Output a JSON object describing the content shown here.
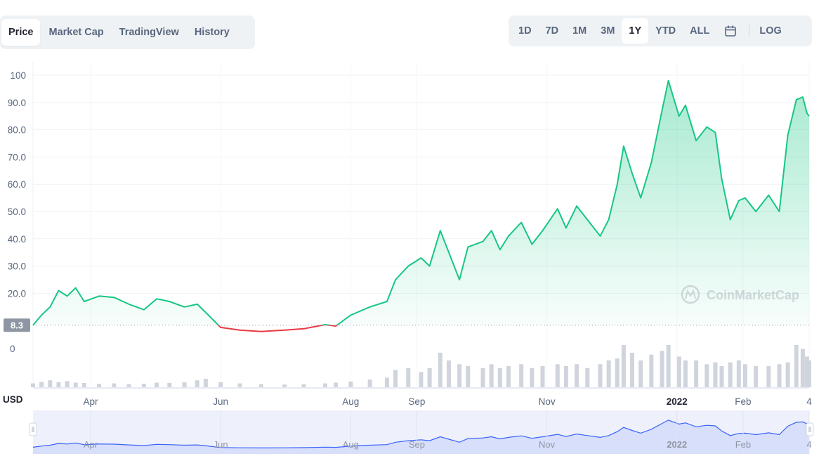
{
  "tabs": [
    {
      "label": "Price",
      "active": true
    },
    {
      "label": "Market Cap",
      "active": false
    },
    {
      "label": "TradingView",
      "active": false
    },
    {
      "label": "History",
      "active": false
    }
  ],
  "ranges": [
    {
      "label": "1D",
      "active": false
    },
    {
      "label": "7D",
      "active": false
    },
    {
      "label": "1M",
      "active": false
    },
    {
      "label": "3M",
      "active": false
    },
    {
      "label": "1Y",
      "active": true
    },
    {
      "label": "YTD",
      "active": false
    },
    {
      "label": "ALL",
      "active": false
    }
  ],
  "calendar_icon": "calendar-icon",
  "log_label": "LOG",
  "watermark": "CoinMarketCap",
  "colors": {
    "up": "#16c784",
    "down": "#ea3943",
    "navigator": "#3861fb",
    "volume": "#d0d4dc",
    "badge": "#8f96a3"
  },
  "chart_data": {
    "type": "area",
    "ylim": [
      0,
      100
    ],
    "yticks": [
      "20.0",
      "30.0",
      "40.0",
      "50.0",
      "60.0",
      "70.0",
      "80.0",
      "90.0",
      "100"
    ],
    "yunit": "USD",
    "open_price": 8.3,
    "open_label": "8.3",
    "volume_label": "0",
    "x_dates": [
      "2021-03-05",
      "2021-03-09",
      "2021-03-13",
      "2021-03-17",
      "2021-03-21",
      "2021-03-25",
      "2021-03-29",
      "2021-04-05",
      "2021-04-12",
      "2021-04-19",
      "2021-04-26",
      "2021-05-02",
      "2021-05-08",
      "2021-05-15",
      "2021-05-21",
      "2021-05-25",
      "2021-06-01",
      "2021-06-10",
      "2021-06-20",
      "2021-07-01",
      "2021-07-10",
      "2021-07-20",
      "2021-07-25",
      "2021-08-01",
      "2021-08-10",
      "2021-08-18",
      "2021-08-22",
      "2021-08-28",
      "2021-09-03",
      "2021-09-07",
      "2021-09-12",
      "2021-09-16",
      "2021-09-21",
      "2021-09-25",
      "2021-10-02",
      "2021-10-06",
      "2021-10-10",
      "2021-10-14",
      "2021-10-20",
      "2021-10-25",
      "2021-10-30",
      "2021-11-06",
      "2021-11-10",
      "2021-11-15",
      "2021-11-20",
      "2021-11-26",
      "2021-11-30",
      "2021-12-04",
      "2021-12-07",
      "2021-12-11",
      "2021-12-15",
      "2021-12-20",
      "2021-12-25",
      "2021-12-28",
      "2022-01-02",
      "2022-01-05",
      "2022-01-10",
      "2022-01-15",
      "2022-01-19",
      "2022-01-22",
      "2022-01-26",
      "2022-01-30",
      "2022-02-02",
      "2022-02-07",
      "2022-02-13",
      "2022-02-18",
      "2022-02-22",
      "2022-02-26",
      "2022-03-01",
      "2022-03-03",
      "2022-03-04"
    ],
    "values": [
      8.3,
      12,
      15,
      21,
      19,
      22,
      17,
      19,
      18.5,
      16,
      14,
      18,
      17,
      15,
      16,
      13,
      7.5,
      6.5,
      6,
      6.5,
      7,
      8.5,
      8,
      12,
      15,
      17,
      25,
      30,
      33,
      30,
      43,
      35,
      25,
      37,
      39,
      43,
      36,
      41,
      46,
      38,
      43,
      51,
      44,
      52,
      47,
      41,
      47,
      60,
      74,
      64,
      55,
      68,
      87,
      98,
      85,
      89,
      76,
      81,
      79,
      62,
      47,
      54,
      55,
      50,
      56,
      50,
      78,
      91,
      92,
      86,
      85
    ],
    "volume": [
      1,
      1.4,
      1.8,
      1.3,
      1.6,
      1.2,
      1.1,
      0.9,
      1,
      0.8,
      0.9,
      1.2,
      1.1,
      1.3,
      1.8,
      2.2,
      1.3,
      1,
      0.8,
      0.7,
      0.8,
      1,
      1.2,
      1.5,
      2,
      2.5,
      4.5,
      5,
      4,
      5,
      9,
      7,
      6,
      5.5,
      5,
      6,
      5,
      5.5,
      6,
      5,
      5.5,
      6,
      5.5,
      6,
      5,
      6,
      7,
      7.5,
      11,
      9,
      7,
      8.5,
      9.5,
      11,
      8,
      7,
      7,
      6,
      6.5,
      5.5,
      6.5,
      7,
      6,
      5.5,
      5.5,
      6,
      6.5,
      11,
      10,
      8,
      7
    ],
    "x_tick_labels": [
      {
        "date": "2021-04-01",
        "label": "Apr",
        "bold": false
      },
      {
        "date": "2021-06-01",
        "label": "Jun",
        "bold": false
      },
      {
        "date": "2021-08-01",
        "label": "Aug",
        "bold": false
      },
      {
        "date": "2021-09-01",
        "label": "Sep",
        "bold": false
      },
      {
        "date": "2021-11-01",
        "label": "Nov",
        "bold": false
      },
      {
        "date": "2022-01-01",
        "label": "2022",
        "bold": true
      },
      {
        "date": "2022-02-01",
        "label": "Feb",
        "bold": false
      },
      {
        "date": "2022-03-04",
        "label": "4",
        "bold": false
      }
    ]
  }
}
